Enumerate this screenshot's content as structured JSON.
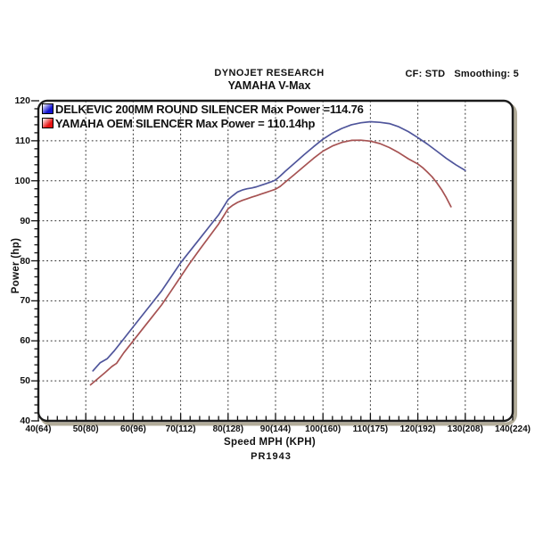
{
  "header": {
    "title_line1": "DYNOJET RESEARCH",
    "title_line2": "YAMAHA V-Max",
    "correction_factor": "CF: STD",
    "smoothing": "Smoothing: 5"
  },
  "footer": {
    "run_id": "PR1943"
  },
  "chart_data": {
    "type": "line",
    "title": "DYNOJET RESEARCH YAMAHA V-Max",
    "xlabel": "Speed MPH (KPH)",
    "ylabel": "Power (hp)",
    "xlim": [
      40,
      140
    ],
    "ylim": [
      40,
      120
    ],
    "grid": true,
    "legend_position": "top-left",
    "x_ticks": [
      {
        "mph": 40,
        "label": "40(64)"
      },
      {
        "mph": 50,
        "label": "50(80)"
      },
      {
        "mph": 60,
        "label": "60(96)"
      },
      {
        "mph": 70,
        "label": "70(112)"
      },
      {
        "mph": 80,
        "label": "80(128)"
      },
      {
        "mph": 90,
        "label": "90(144)"
      },
      {
        "mph": 100,
        "label": "100(160)"
      },
      {
        "mph": 110,
        "label": "110(175)"
      },
      {
        "mph": 120,
        "label": "120(192)"
      },
      {
        "mph": 130,
        "label": "130(208)"
      },
      {
        "mph": 140,
        "label": "140(224)"
      }
    ],
    "y_ticks": [
      40,
      50,
      60,
      70,
      80,
      90,
      100,
      110,
      120
    ],
    "series": [
      {
        "name": "DELKEVIC 200MM ROUND SILENCER",
        "legend_label": "DELKEVIC 200MM ROUND SILENCER Max Power =114.76",
        "max_power_hp": 114.76,
        "line_color": "#4f559b",
        "swatch_color": "#1414d2",
        "points": [
          [
            51.5,
            52.5
          ],
          [
            53,
            54.5
          ],
          [
            54.5,
            55.5
          ],
          [
            56,
            57.5
          ],
          [
            58,
            60.5
          ],
          [
            60,
            63.5
          ],
          [
            62,
            66.5
          ],
          [
            64,
            69.5
          ],
          [
            66,
            72.5
          ],
          [
            68,
            76
          ],
          [
            70,
            79.5
          ],
          [
            72,
            82.5
          ],
          [
            74,
            85.5
          ],
          [
            76,
            88.5
          ],
          [
            78,
            91.5
          ],
          [
            80,
            95.3
          ],
          [
            81,
            96.3
          ],
          [
            82,
            97.2
          ],
          [
            83,
            97.7
          ],
          [
            84,
            98
          ],
          [
            85,
            98.2
          ],
          [
            86,
            98.5
          ],
          [
            87,
            98.9
          ],
          [
            88,
            99.3
          ],
          [
            89,
            99.7
          ],
          [
            90,
            100.2
          ],
          [
            91,
            101.2
          ],
          [
            92,
            102.3
          ],
          [
            94,
            104.4
          ],
          [
            96,
            106.5
          ],
          [
            98,
            108.5
          ],
          [
            100,
            110.4
          ],
          [
            102,
            111.9
          ],
          [
            104,
            113.1
          ],
          [
            106,
            114
          ],
          [
            108,
            114.5
          ],
          [
            110,
            114.76
          ],
          [
            112,
            114.6
          ],
          [
            114,
            114.3
          ],
          [
            116,
            113.5
          ],
          [
            118,
            112.3
          ],
          [
            120,
            110.8
          ],
          [
            122,
            109.2
          ],
          [
            124,
            107.4
          ],
          [
            126,
            105.6
          ],
          [
            128,
            104
          ],
          [
            130,
            102.6
          ]
        ]
      },
      {
        "name": "YAMAHA OEM SILENCER",
        "legend_label": "YAMAHA OEM SILENCER Max Power = 110.14hp",
        "max_power_hp": 110.14,
        "line_color": "#a65252",
        "swatch_color": "#e81414",
        "points": [
          [
            51,
            49
          ],
          [
            52.5,
            50.5
          ],
          [
            54,
            52
          ],
          [
            55.5,
            53.6
          ],
          [
            56.5,
            54.4
          ],
          [
            58,
            57
          ],
          [
            60,
            60
          ],
          [
            62,
            63
          ],
          [
            64,
            66
          ],
          [
            66,
            69
          ],
          [
            68,
            72.5
          ],
          [
            70,
            76
          ],
          [
            72,
            79.5
          ],
          [
            74,
            82.8
          ],
          [
            76,
            86
          ],
          [
            78,
            89.2
          ],
          [
            80,
            93
          ],
          [
            81,
            93.9
          ],
          [
            82,
            94.6
          ],
          [
            83,
            95.1
          ],
          [
            84,
            95.5
          ],
          [
            85,
            95.9
          ],
          [
            86,
            96.3
          ],
          [
            87,
            96.7
          ],
          [
            88,
            97.1
          ],
          [
            89,
            97.5
          ],
          [
            90,
            97.9
          ],
          [
            91,
            98.6
          ],
          [
            92,
            99.6
          ],
          [
            94,
            101.6
          ],
          [
            96,
            103.6
          ],
          [
            98,
            105.6
          ],
          [
            100,
            107.4
          ],
          [
            102,
            108.7
          ],
          [
            104,
            109.6
          ],
          [
            106,
            110.1
          ],
          [
            108,
            110.14
          ],
          [
            110,
            109.9
          ],
          [
            112,
            109.3
          ],
          [
            114,
            108.3
          ],
          [
            116,
            107
          ],
          [
            118,
            105.5
          ],
          [
            120,
            104.2
          ],
          [
            121,
            103.3
          ],
          [
            122,
            102.2
          ],
          [
            123,
            101
          ],
          [
            124,
            99.5
          ],
          [
            125,
            97.8
          ],
          [
            126,
            95.8
          ],
          [
            127,
            93.5
          ]
        ]
      }
    ]
  }
}
